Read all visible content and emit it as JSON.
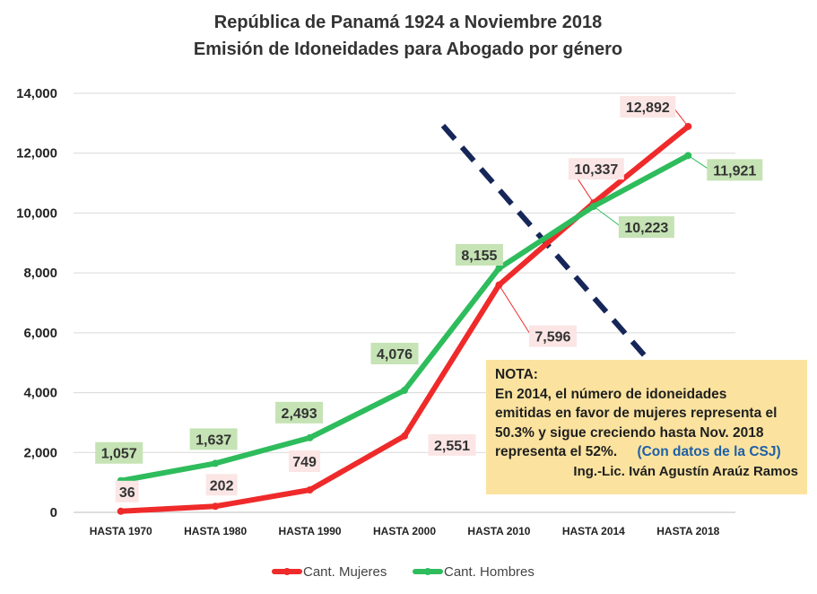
{
  "chart_data": {
    "type": "line",
    "title": "República de Panamá 1924 a Noviembre 2018",
    "subtitle": "Emisión de Idoneidades para Abogado por género",
    "categories": [
      "HASTA 1970",
      "HASTA 1980",
      "HASTA 1990",
      "HASTA 2000",
      "HASTA 2010",
      "HASTA 2014",
      "HASTA 2018"
    ],
    "series": [
      {
        "name": "Cant. Mujeres",
        "color": "#ef2a2a",
        "values": [
          36,
          202,
          749,
          2551,
          7596,
          10337,
          12892
        ],
        "labels": [
          "36",
          "202",
          "749",
          "2,551",
          "7,596",
          "10,337",
          "12,892"
        ],
        "label_bg": "#fbe5e5"
      },
      {
        "name": "Cant. Hombres",
        "color": "#2ebc5c",
        "values": [
          1057,
          1637,
          2493,
          4076,
          8155,
          10223,
          11921
        ],
        "labels": [
          "1,057",
          "1,637",
          "2,493",
          "4,076",
          "8,155",
          "10,223",
          "11,921"
        ],
        "label_bg": "#c5e3b4"
      }
    ],
    "ylim": [
      0,
      14000
    ],
    "yticks": [
      0,
      2000,
      4000,
      6000,
      8000,
      10000,
      12000,
      14000
    ],
    "ytick_labels": [
      "0",
      "2,000",
      "4,000",
      "6,000",
      "8,000",
      "10,000",
      "12,000",
      "14,000"
    ],
    "grid": true,
    "legend": "bottom",
    "xlabel": "",
    "ylabel": "",
    "annotation_line_color": "#162659"
  },
  "note": {
    "heading": "NOTA:",
    "lines": [
      "En 2014, el número de idoneidades",
      "emitidas en favor de mujeres representa el",
      "50.3% y sigue creciendo hasta Nov. 2018",
      "representa el 52%."
    ],
    "source": "(Con datos de la CSJ)",
    "author": "Ing.-Lic. Iván Agustín Araúz Ramos",
    "background": "#fbe39f"
  }
}
